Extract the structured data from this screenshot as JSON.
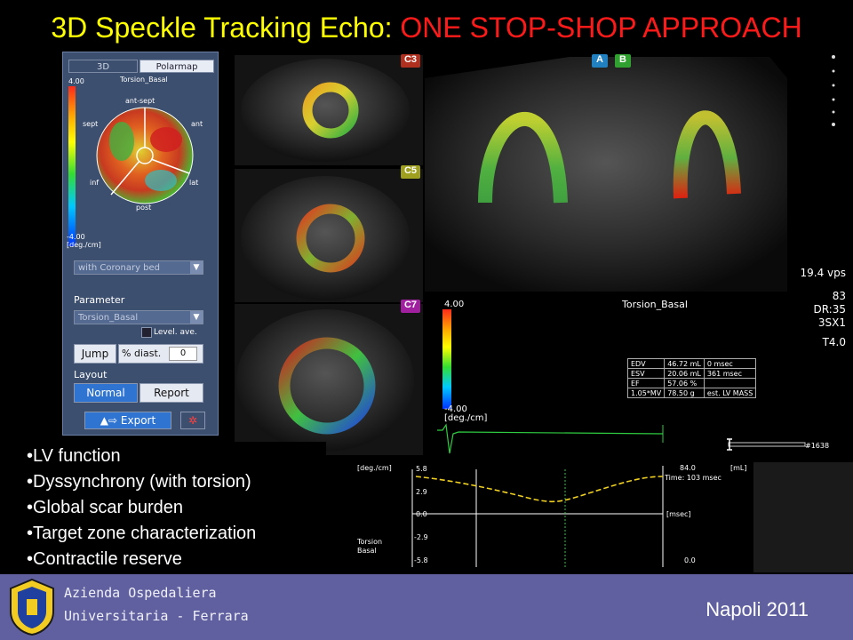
{
  "title": {
    "part1": "3D Speckle Tracking Echo:",
    "part2": "ONE STOP-SHOP APPROACH"
  },
  "panel": {
    "tabs": [
      "3D",
      "Polarmap"
    ],
    "active_tab": "Polarmap",
    "map_title": "Torsion_Basal",
    "scale_max": "4.00",
    "scale_min": "-4.00",
    "scale_unit": "[deg./cm]",
    "segments": {
      "ant_sept": "ant-sept",
      "sept": "sept",
      "ant": "ant",
      "inf": "inf",
      "lat": "lat",
      "post": "post"
    },
    "overlay_select": "with Coronary bed",
    "parameter_label": "Parameter",
    "parameter_value": "Torsion_Basal",
    "level_ave": "Level. ave.",
    "jump_label": "Jump",
    "pct_diast_label": "% diast.",
    "pct_diast_value": "0",
    "layout_label": "Layout",
    "layout_normal": "Normal",
    "layout_report": "Report",
    "export_label": "Export"
  },
  "views": {
    "c3": "C3",
    "c5": "C5",
    "c7": "C7",
    "a": "A",
    "b": "B",
    "vps": "19.4 vps",
    "side_info": [
      "83",
      "DR:35",
      "3SX1",
      "T4.0"
    ],
    "param_title": "Torsion_Basal",
    "scale_top": "4.00",
    "scale_bottom": "-4.00",
    "scale_unit": "[deg./cm]"
  },
  "measurements": [
    [
      "EDV",
      "46.72 mL",
      "0 msec"
    ],
    [
      "ESV",
      "20.06 mL",
      "361 msec"
    ],
    [
      "EF",
      "57.06 %",
      ""
    ],
    [
      "1.05*MV",
      "78.50 g",
      "est. LV MASS"
    ]
  ],
  "graph": {
    "unit_left": "[deg./cm]",
    "unit_right": "[mL]",
    "yticks": [
      "5.8",
      "2.9",
      "0.0",
      "-2.9",
      "-5.8"
    ],
    "right_top": "84.0",
    "right_bottom": "0.0",
    "time_readout": "Time: 103 msec",
    "x_unit": "[msec]",
    "param_line1": "Torsion",
    "param_line2": "Basal",
    "frame_label": "#1638"
  },
  "bullets": [
    "•LV function",
    "•Dyssynchrony (with torsion)",
    "•Global scar burden",
    "•Target zone characterization",
    "•Contractile reserve"
  ],
  "footer": {
    "org_line1": "Azienda Ospedaliera",
    "org_line2": "Universitaria - Ferrara",
    "city": "Napoli  2011"
  },
  "colors": {
    "title_yellow": "#ffff00",
    "title_red": "#ff1a1a",
    "footer_bg": "#6060a0",
    "active_blue": "#2f74d0"
  }
}
